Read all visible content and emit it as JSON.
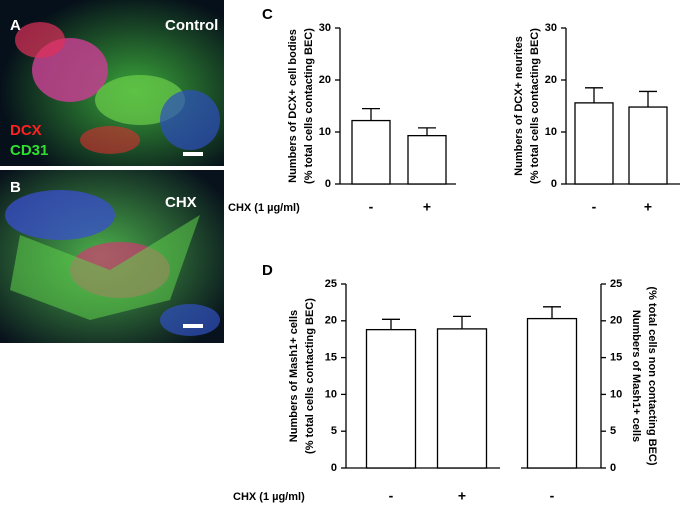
{
  "panels": {
    "A": {
      "letter": "A",
      "label": "Control",
      "stain1": "DCX",
      "stain2": "CD31"
    },
    "B": {
      "letter": "B",
      "label": "CHX"
    },
    "C": "C",
    "D": "D"
  },
  "chart_data": [
    {
      "type": "bar",
      "ylabel": [
        "Numbers of DCX+ cell bodies",
        "(% total cells contacting BEC)"
      ],
      "xlabel": "CHX (1 µg/ml)",
      "categories": [
        "-",
        "+"
      ],
      "values": [
        12.2,
        9.3
      ],
      "errors": [
        2.3,
        1.5
      ],
      "color": "#ffffff",
      "ylim": [
        0,
        30
      ],
      "yticks": [
        0,
        10,
        20,
        30
      ],
      "axis_side": "left"
    },
    {
      "type": "bar",
      "ylabel": [
        "Numbers of DCX+ neurites",
        "(% total cells contacting BEC)"
      ],
      "categories": [
        "-",
        "+"
      ],
      "values": [
        15.6,
        14.8
      ],
      "errors": [
        2.9,
        3.0
      ],
      "color": "#ffffff",
      "ylim": [
        0,
        30
      ],
      "yticks": [
        0,
        10,
        20,
        30
      ],
      "axis_side": "left"
    },
    {
      "type": "bar",
      "ylabel": [
        "Numbers of Mash1+ cells",
        "(% total cells contacting BEC)"
      ],
      "xlabel": "CHX (1 µg/ml)",
      "categories": [
        "-",
        "+"
      ],
      "values": [
        18.8,
        18.9
      ],
      "errors": [
        1.4,
        1.7
      ],
      "color": "#ffffff",
      "ylim": [
        0,
        25
      ],
      "yticks": [
        0,
        5,
        10,
        15,
        20,
        25
      ],
      "axis_side": "left"
    },
    {
      "type": "bar",
      "ylabel": [
        "Numbers of Mash1+ cells",
        "(% total cells non contacting BEC)"
      ],
      "categories": [
        "-"
      ],
      "values": [
        20.3
      ],
      "errors": [
        1.6
      ],
      "color": "#ffffff",
      "ylim": [
        0,
        25
      ],
      "yticks": [
        0,
        5,
        10,
        15,
        20,
        25
      ],
      "axis_side": "right"
    }
  ]
}
